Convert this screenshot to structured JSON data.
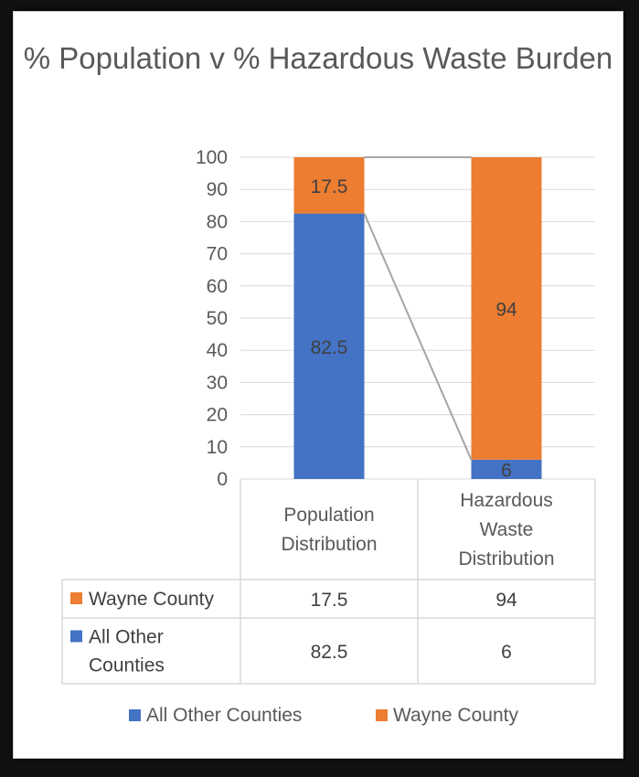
{
  "chart_data": {
    "type": "bar",
    "stacked": true,
    "title": "% Population v % Hazardous Waste Burden",
    "categories": [
      [
        "Population",
        "Distribution"
      ],
      [
        "Hazardous",
        "Waste",
        "Distribution"
      ]
    ],
    "series": [
      {
        "name": "All Other Counties",
        "table_name": [
          "All Other",
          "Counties"
        ],
        "values": [
          82.5,
          6
        ],
        "color": "#4472C4"
      },
      {
        "name": "Wayne County",
        "table_name": [
          "Wayne County"
        ],
        "values": [
          17.5,
          94
        ],
        "color": "#ED7D31"
      }
    ],
    "ylim": [
      0,
      100
    ],
    "yticks": [
      0,
      10,
      20,
      30,
      40,
      50,
      60,
      70,
      80,
      90,
      100
    ],
    "grid": true,
    "series_lines": true,
    "data_table": true,
    "legend": "bottom",
    "colors": {
      "grid": "#d9d9d9",
      "text": "#595959",
      "series_line": "#a5a5a5"
    }
  }
}
